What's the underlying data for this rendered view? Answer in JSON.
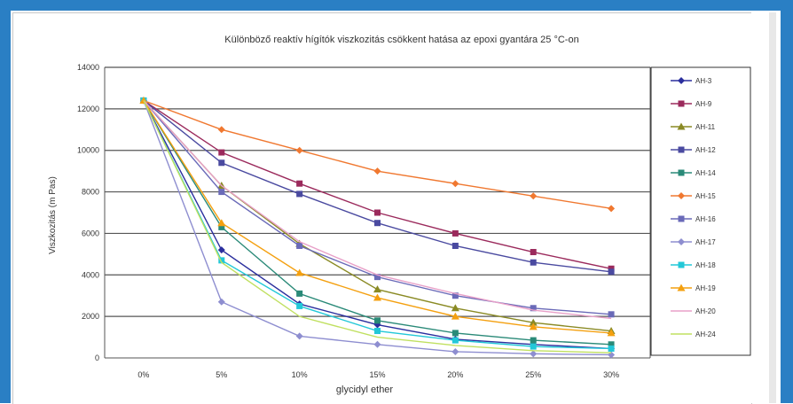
{
  "chart_data": {
    "type": "line",
    "title": "Különböző reaktív hígítók viszkozitás csökkent hatása az epoxi gyantára 25 °C-on",
    "xlabel": "glycidyl ether",
    "ylabel": "Viszkozitás (m Pas)",
    "categories": [
      "0%",
      "5%",
      "10%",
      "15%",
      "20%",
      "25%",
      "30%"
    ],
    "ylim": [
      0,
      14000
    ],
    "yticks": [
      "0",
      "2000",
      "4000",
      "6000",
      "8000",
      "10000",
      "12000",
      "14000"
    ],
    "grid": true,
    "legend_position": "right",
    "series": [
      {
        "name": "AH-3",
        "color": "#2b2f9e",
        "marker": "diamond",
        "values": [
          12400,
          5200,
          2600,
          1600,
          900,
          650,
          450
        ]
      },
      {
        "name": "AH-9",
        "color": "#9b2a5c",
        "marker": "square",
        "values": [
          12400,
          9900,
          8400,
          7000,
          6000,
          5100,
          4300
        ]
      },
      {
        "name": "AH-11",
        "color": "#8a8a24",
        "marker": "triangle",
        "values": [
          12400,
          8300,
          5500,
          3300,
          2400,
          1700,
          1300
        ]
      },
      {
        "name": "AH-12",
        "color": "#4a4aa0",
        "marker": "square",
        "values": [
          12400,
          9400,
          7900,
          6500,
          5400,
          4600,
          4150
        ]
      },
      {
        "name": "AH-14",
        "color": "#2a8a78",
        "marker": "square",
        "values": [
          12400,
          6300,
          3100,
          1800,
          1200,
          850,
          650
        ]
      },
      {
        "name": "AH-15",
        "color": "#f07830",
        "marker": "diamond",
        "values": [
          12400,
          11000,
          10000,
          9000,
          8400,
          7800,
          7200
        ]
      },
      {
        "name": "AH-16",
        "color": "#6a6ab8",
        "marker": "square",
        "values": [
          12400,
          8000,
          5400,
          3900,
          3000,
          2400,
          2100
        ]
      },
      {
        "name": "AH-17",
        "color": "#8e8ed0",
        "marker": "diamond",
        "values": [
          12400,
          2700,
          1050,
          650,
          300,
          200,
          150
        ]
      },
      {
        "name": "AH-18",
        "color": "#22c8d8",
        "marker": "square",
        "values": [
          12400,
          4700,
          2500,
          1300,
          850,
          550,
          450
        ]
      },
      {
        "name": "AH-19",
        "color": "#f4a010",
        "marker": "triangle",
        "values": [
          12400,
          6500,
          4100,
          2900,
          2000,
          1500,
          1200
        ]
      },
      {
        "name": "AH-20",
        "color": "#e8a0c8",
        "marker": "none",
        "values": [
          12400,
          8300,
          5600,
          4000,
          3100,
          2300,
          1900
        ]
      },
      {
        "name": "AH-24",
        "color": "#c0e060",
        "marker": "none",
        "values": [
          12400,
          4600,
          2000,
          1000,
          600,
          350,
          250
        ]
      }
    ]
  }
}
